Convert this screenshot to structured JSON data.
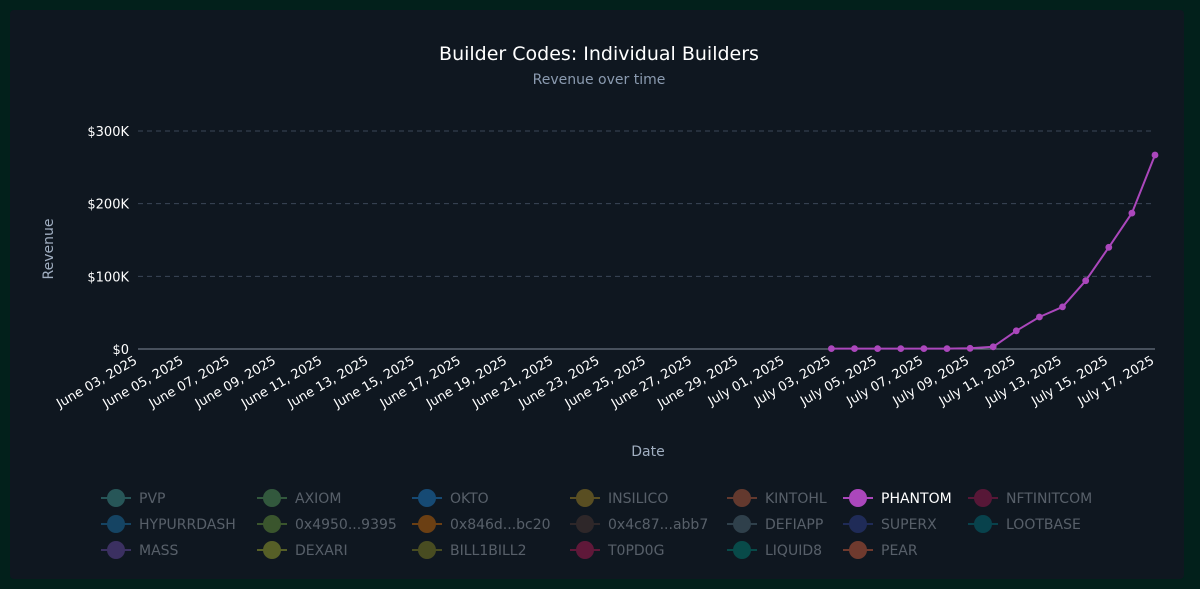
{
  "chart_data": {
    "type": "line",
    "title": "Builder Codes: Individual Builders",
    "subtitle": "Revenue over time",
    "xlabel": "Date",
    "ylabel": "Revenue",
    "ylim": [
      0,
      300000
    ],
    "y_ticks": [
      {
        "value": 0,
        "label": "$0"
      },
      {
        "value": 100000,
        "label": "$100K"
      },
      {
        "value": 200000,
        "label": "$200K"
      },
      {
        "value": 300000,
        "label": "$300K"
      }
    ],
    "x_range": [
      "2025-06-03",
      "2025-07-17"
    ],
    "x_ticks": [
      {
        "date": "2025-06-03",
        "label": "June 03, 2025"
      },
      {
        "date": "2025-06-05",
        "label": "June 05, 2025"
      },
      {
        "date": "2025-06-07",
        "label": "June 07, 2025"
      },
      {
        "date": "2025-06-09",
        "label": "June 09, 2025"
      },
      {
        "date": "2025-06-11",
        "label": "June 11, 2025"
      },
      {
        "date": "2025-06-13",
        "label": "June 13, 2025"
      },
      {
        "date": "2025-06-15",
        "label": "June 15, 2025"
      },
      {
        "date": "2025-06-17",
        "label": "June 17, 2025"
      },
      {
        "date": "2025-06-19",
        "label": "June 19, 2025"
      },
      {
        "date": "2025-06-21",
        "label": "June 21, 2025"
      },
      {
        "date": "2025-06-23",
        "label": "June 23, 2025"
      },
      {
        "date": "2025-06-25",
        "label": "June 25, 2025"
      },
      {
        "date": "2025-06-27",
        "label": "June 27, 2025"
      },
      {
        "date": "2025-06-29",
        "label": "June 29, 2025"
      },
      {
        "date": "2025-07-01",
        "label": "July 01, 2025"
      },
      {
        "date": "2025-07-03",
        "label": "July 03, 2025"
      },
      {
        "date": "2025-07-05",
        "label": "July 05, 2025"
      },
      {
        "date": "2025-07-07",
        "label": "July 07, 2025"
      },
      {
        "date": "2025-07-09",
        "label": "July 09, 2025"
      },
      {
        "date": "2025-07-11",
        "label": "July 11, 2025"
      },
      {
        "date": "2025-07-13",
        "label": "July 13, 2025"
      },
      {
        "date": "2025-07-15",
        "label": "July 15, 2025"
      },
      {
        "date": "2025-07-17",
        "label": "July 17, 2025"
      }
    ],
    "grid": true,
    "legend_position": "bottom",
    "series": [
      {
        "name": "PHANTOM",
        "color": "#ab47bc",
        "active": true,
        "points": [
          {
            "x": "2025-07-03",
            "y": 500
          },
          {
            "x": "2025-07-04",
            "y": 500
          },
          {
            "x": "2025-07-05",
            "y": 500
          },
          {
            "x": "2025-07-06",
            "y": 500
          },
          {
            "x": "2025-07-07",
            "y": 500
          },
          {
            "x": "2025-07-08",
            "y": 500
          },
          {
            "x": "2025-07-09",
            "y": 1000
          },
          {
            "x": "2025-07-10",
            "y": 3000
          },
          {
            "x": "2025-07-11",
            "y": 25000
          },
          {
            "x": "2025-07-12",
            "y": 44000
          },
          {
            "x": "2025-07-13",
            "y": 58000
          },
          {
            "x": "2025-07-14",
            "y": 94000
          },
          {
            "x": "2025-07-15",
            "y": 140000
          },
          {
            "x": "2025-07-16",
            "y": 187000
          },
          {
            "x": "2025-07-17",
            "y": 267000
          }
        ]
      }
    ],
    "legend": [
      {
        "name": "PVP",
        "color": "#4db6ac",
        "active": false
      },
      {
        "name": "AXIOM",
        "color": "#66bb6a",
        "active": false
      },
      {
        "name": "OKTO",
        "color": "#2196f3",
        "active": false
      },
      {
        "name": "INSILICO",
        "color": "#c9a227",
        "active": false
      },
      {
        "name": "KINTOHL",
        "color": "#e06d45",
        "active": false
      },
      {
        "name": "PHANTOM",
        "color": "#ab47bc",
        "active": true
      },
      {
        "name": "NFTINITCOM",
        "color": "#c2185b",
        "active": false
      },
      {
        "name": "HYPURRDASH",
        "color": "#1e88c8",
        "active": false
      },
      {
        "name": "0x4950...9395",
        "color": "#7cb342",
        "active": false
      },
      {
        "name": "0x846d...bc20",
        "color": "#f57c00",
        "active": false
      },
      {
        "name": "0x4c87...abb7",
        "color": "#5d4037",
        "active": false
      },
      {
        "name": "DEFIAPP",
        "color": "#607d8b",
        "active": false
      },
      {
        "name": "SUPERX",
        "color": "#3949ab",
        "active": false
      },
      {
        "name": "LOOTBASE",
        "color": "#00838f",
        "active": false
      },
      {
        "name": "MASS",
        "color": "#7e57c2",
        "active": false
      },
      {
        "name": "DEXARI",
        "color": "#c0ca33",
        "active": false
      },
      {
        "name": "BILL1BILL2",
        "color": "#9e9d24",
        "active": false
      },
      {
        "name": "T0PD0G",
        "color": "#d81b60",
        "active": false
      },
      {
        "name": "LIQUID8",
        "color": "#009688",
        "active": false
      },
      {
        "name": "PEAR",
        "color": "#ff7043",
        "active": false
      }
    ]
  }
}
